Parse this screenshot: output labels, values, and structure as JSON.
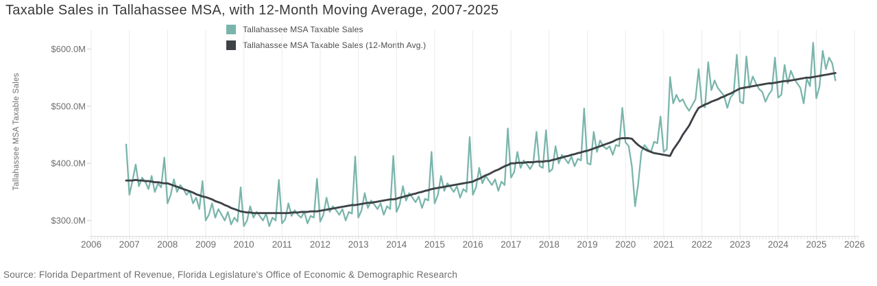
{
  "title": "Taxable Sales in Tallahassee MSA, with 12-Month Moving Average, 2007-2025",
  "source": "Source: Florida Department of Revenue, Florida Legislature's Office of Economic & Demographic Research",
  "colors": {
    "sales_line": "#7ab5ab",
    "avg_line": "#3e4246",
    "gridline": "#ebebeb",
    "axis_line": "#dcdcdc",
    "tick_text": "#6e6e6e",
    "title_text": "#383838"
  },
  "legend": [
    {
      "label": "Tallahassee MSA Taxable Sales",
      "color": "#7ab5ab"
    },
    {
      "label": "Tallahassee MSA Taxable Sales (12-Month Avg.)",
      "color": "#3e4246"
    }
  ],
  "y_axis": {
    "title": "Tallahassee MSA Taxable Sales",
    "ticks": [
      {
        "label": "$600.0M",
        "value": 600
      },
      {
        "label": "$500.0M",
        "value": 500
      },
      {
        "label": "$400.0M",
        "value": 400
      },
      {
        "label": "$300.0M",
        "value": 300
      }
    ]
  },
  "x_axis": {
    "ticks": [
      2006,
      2007,
      2008,
      2009,
      2010,
      2011,
      2012,
      2013,
      2014,
      2015,
      2016,
      2017,
      2018,
      2019,
      2020,
      2021,
      2022,
      2023,
      2024,
      2025,
      2026
    ]
  },
  "chart_data": {
    "type": "line",
    "title": "Taxable Sales in Tallahassee MSA, with 12-Month Moving Average, 2007-2025",
    "xlabel": "",
    "ylabel": "Tallahassee MSA Taxable Sales",
    "unit": "USD millions",
    "x_monthly_start": "2006-12",
    "x_monthly_end": "2025-07",
    "xlim": [
      2006,
      2026.4
    ],
    "ylim": [
      270,
      630
    ],
    "grid": "vertical-years-only",
    "legend_position": "top",
    "series": [
      {
        "name": "Tallahassee MSA Taxable Sales",
        "color": "#7ab5ab",
        "values": [
          433,
          345,
          370,
          398,
          360,
          375,
          368,
          355,
          378,
          350,
          365,
          358,
          410,
          330,
          345,
          372,
          350,
          362,
          355,
          345,
          352,
          330,
          340,
          320,
          369,
          300,
          310,
          330,
          305,
          320,
          310,
          300,
          315,
          293,
          305,
          298,
          358,
          290,
          300,
          325,
          305,
          315,
          308,
          300,
          312,
          290,
          305,
          300,
          371,
          295,
          302,
          330,
          308,
          318,
          310,
          305,
          315,
          295,
          308,
          305,
          373,
          298,
          310,
          340,
          315,
          325,
          318,
          310,
          320,
          300,
          315,
          312,
          412,
          305,
          318,
          348,
          322,
          335,
          328,
          320,
          330,
          310,
          325,
          320,
          413,
          315,
          328,
          360,
          335,
          348,
          340,
          332,
          342,
          322,
          338,
          335,
          420,
          330,
          345,
          378,
          352,
          365,
          358,
          350,
          360,
          340,
          355,
          350,
          446,
          345,
          358,
          392,
          365,
          378,
          370,
          362,
          372,
          352,
          368,
          362,
          461,
          375,
          385,
          420,
          392,
          405,
          398,
          390,
          400,
          455,
          395,
          392,
          458,
          385,
          390,
          430,
          400,
          415,
          408,
          400,
          412,
          395,
          408,
          405,
          496,
          400,
          398,
          455,
          420,
          440,
          430,
          425,
          430,
          415,
          432,
          430,
          497,
          437,
          430,
          395,
          325,
          365,
          420,
          432,
          425,
          420,
          438,
          435,
          482,
          420,
          425,
          551,
          505,
          520,
          508,
          512,
          500,
          492,
          502,
          512,
          565,
          502,
          498,
          577,
          528,
          545,
          532,
          525,
          518,
          497,
          515,
          522,
          590,
          508,
          505,
          587,
          532,
          552,
          540,
          530,
          525,
          508,
          520,
          528,
          585,
          515,
          520,
          572,
          540,
          562,
          548,
          540,
          532,
          505,
          548,
          535,
          611,
          514,
          535,
          597,
          565,
          585,
          575,
          545
        ]
      },
      {
        "name": "Tallahassee MSA Taxable Sales (12-Month Avg.)",
        "color": "#3e4246",
        "values": [
          370,
          370,
          370,
          371,
          370,
          370,
          369,
          369,
          368,
          367,
          367,
          366,
          365,
          365,
          363,
          361,
          359,
          357,
          355,
          353,
          351,
          349,
          346,
          344,
          342,
          341,
          339,
          337,
          334,
          332,
          330,
          327,
          325,
          322,
          320,
          318,
          316,
          315,
          314,
          314,
          313,
          313,
          313,
          313,
          313,
          313,
          313,
          313,
          313,
          313,
          313,
          313,
          314,
          314,
          314,
          315,
          315,
          315,
          316,
          316,
          316,
          317,
          318,
          319,
          320,
          321,
          322,
          323,
          324,
          325,
          326,
          327,
          327,
          328,
          329,
          330,
          331,
          331,
          332,
          333,
          334,
          335,
          336,
          337,
          337,
          338,
          340,
          341,
          343,
          344,
          346,
          347,
          349,
          350,
          352,
          353,
          355,
          356,
          357,
          358,
          359,
          360,
          361,
          362,
          363,
          364,
          365,
          366,
          367,
          368,
          371,
          373,
          376,
          379,
          381,
          384,
          387,
          389,
          392,
          395,
          397,
          400,
          400,
          401,
          401,
          401,
          402,
          402,
          402,
          403,
          403,
          403,
          404,
          404,
          406,
          407,
          409,
          410,
          412,
          413,
          415,
          416,
          418,
          419,
          421,
          422,
          424,
          426,
          428,
          430,
          432,
          434,
          436,
          438,
          441,
          443,
          444,
          444,
          444,
          443,
          437,
          432,
          428,
          425,
          422,
          420,
          418,
          417,
          416,
          415,
          414,
          413,
          424,
          432,
          440,
          450,
          458,
          466,
          477,
          488,
          497,
          500,
          503,
          505,
          508,
          510,
          512,
          515,
          517,
          520,
          522,
          525,
          528,
          531,
          532,
          533,
          534,
          535,
          536,
          537,
          538,
          539,
          540,
          540,
          541,
          542,
          543,
          544,
          544,
          545,
          546,
          547,
          548,
          549,
          550,
          550,
          551,
          552,
          553,
          554,
          555,
          556,
          557,
          558
        ]
      }
    ]
  }
}
